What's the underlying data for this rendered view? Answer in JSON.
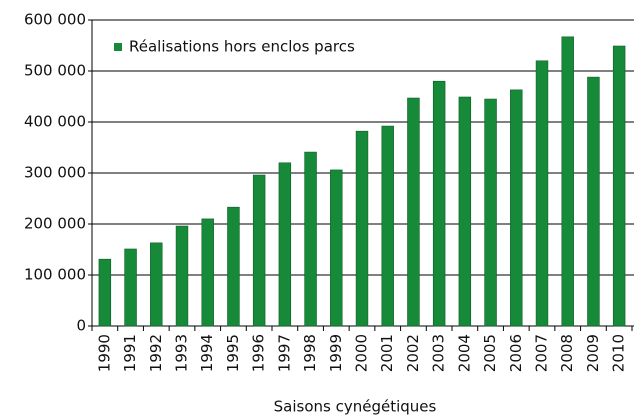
{
  "chart_data": {
    "type": "bar",
    "x_label": "Saisons cynégétiques",
    "categories": [
      "1990",
      "1991",
      "1992",
      "1993",
      "1994",
      "1995",
      "1996",
      "1997",
      "1998",
      "1999",
      "2000",
      "2001",
      "2002",
      "2003",
      "2004",
      "2005",
      "2006",
      "2007",
      "2008",
      "2009",
      "2010"
    ],
    "series": [
      {
        "name": "Réalisations hors enclos parcs",
        "color": "#178a3a",
        "values": [
          131000,
          151000,
          163000,
          196000,
          210000,
          233000,
          296000,
          320000,
          341000,
          306000,
          382000,
          392000,
          447000,
          480000,
          449000,
          445000,
          463000,
          520000,
          567000,
          488000,
          549000
        ]
      }
    ],
    "ylim": [
      0,
      600000
    ],
    "yticks": [
      0,
      {
        "value": 100000,
        "label": "100 000"
      },
      {
        "value": 200000,
        "label": "200 000"
      },
      {
        "value": 300000,
        "label": "300 000"
      },
      {
        "value": 400000,
        "label": "400 000"
      },
      {
        "value": 500000,
        "label": "500 000"
      },
      {
        "value": 600000,
        "label": "600 000"
      }
    ],
    "grid": true,
    "legend": "upper left"
  }
}
